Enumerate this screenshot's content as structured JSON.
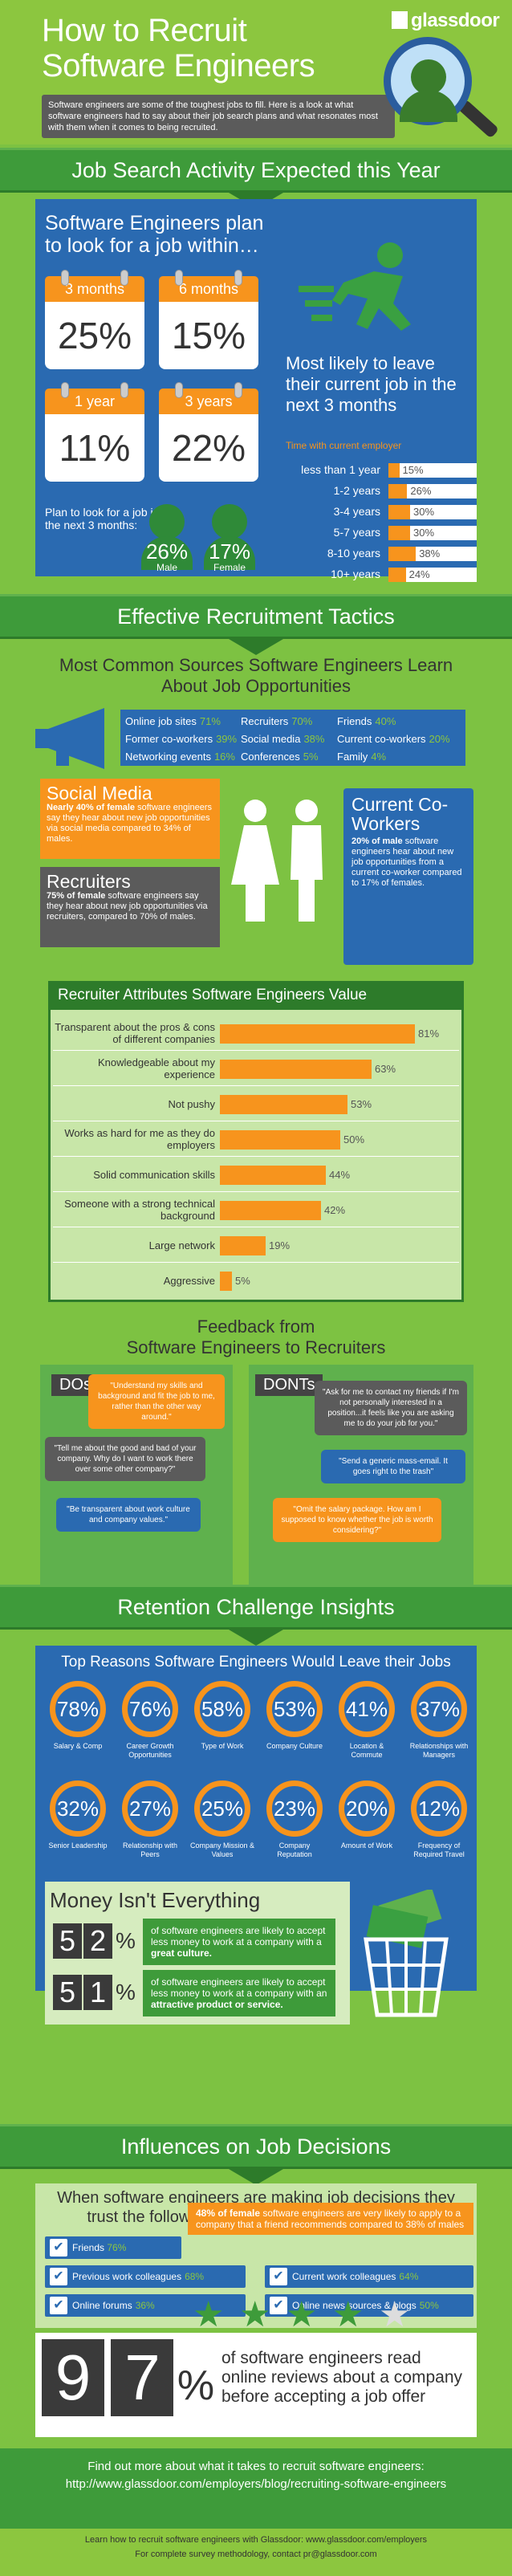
{
  "header": {
    "title_line1": "How to Recruit",
    "title_line2": "Software Engineers",
    "logo": "glassdoor",
    "intro": "Software engineers are some of the toughest jobs to fill. Here is a look at what software engineers had to say about their job search plans and what resonates most with them when it comes to being recruited."
  },
  "section1": {
    "bar": "Job Search Activity Expected this Year",
    "title": "Software Engineers plan to look for a job within…",
    "calendars": [
      {
        "period": "3 months",
        "value": "25%"
      },
      {
        "period": "6 months",
        "value": "15%"
      },
      {
        "period": "1 year",
        "value": "11%"
      },
      {
        "period": "3 years",
        "value": "22%"
      }
    ],
    "plan_text": "Plan to look for a job in the next 3 months:",
    "male_pct": "26%",
    "male_label": "Male",
    "female_pct": "17%",
    "female_label": "Female",
    "leave_title": "Most likely to leave their current job in the next 3 months",
    "leave_sub": "Time with current employer",
    "leave_rows": [
      {
        "label": "less than 1 year",
        "value": 15,
        "text": "15%"
      },
      {
        "label": "1-2 years",
        "value": 26,
        "text": "26%"
      },
      {
        "label": "3-4 years",
        "value": 30,
        "text": "30%"
      },
      {
        "label": "5-7 years",
        "value": 30,
        "text": "30%"
      },
      {
        "label": "8-10 years",
        "value": 38,
        "text": "38%"
      },
      {
        "label": "10+ years",
        "value": 24,
        "text": "24%"
      }
    ]
  },
  "section2": {
    "bar": "Effective Recruitment Tactics",
    "title": "Most Common Sources Software Engineers Learn About Job Opportunities",
    "sources": [
      {
        "label": "Online job sites",
        "value": "71%"
      },
      {
        "label": "Recruiters",
        "value": "70%"
      },
      {
        "label": "Friends",
        "value": "40%"
      },
      {
        "label": "Former co-workers",
        "value": "39%"
      },
      {
        "label": "Social media",
        "value": "38%"
      },
      {
        "label": "Current co-workers",
        "value": "20%"
      },
      {
        "label": "Networking events",
        "value": "16%"
      },
      {
        "label": "Conferences",
        "value": "5%"
      },
      {
        "label": "Family",
        "value": "4%"
      }
    ],
    "social_title": "Social Media",
    "social_bold": "Nearly 40% of female",
    "social_text": " software engineers say they hear about new job opportunities via social media compared to 34% of males.",
    "recruiters_title": "Recruiters",
    "recruiters_bold": "75% of female",
    "recruiters_text": " software engineers say they hear about new job opportunities via recruiters, compared to 70% of males.",
    "cowork_title": "Current Co-Workers",
    "cowork_bold": "20% of male",
    "cowork_text": " software engineers hear about new job opportunities from a current co-worker compared to 17% of females.",
    "attr_title": "Recruiter Attributes Software Engineers Value",
    "attributes": [
      {
        "label": "Transparent about the pros & cons of different companies",
        "value": 81,
        "text": "81%"
      },
      {
        "label": "Knowledgeable about my experience",
        "value": 63,
        "text": "63%"
      },
      {
        "label": "Not pushy",
        "value": 53,
        "text": "53%"
      },
      {
        "label": "Works as hard for me as they do employers",
        "value": 50,
        "text": "50%"
      },
      {
        "label": "Solid communication skills",
        "value": 44,
        "text": "44%"
      },
      {
        "label": "Someone with a strong technical background",
        "value": 42,
        "text": "42%"
      },
      {
        "label": "Large network",
        "value": 19,
        "text": "19%"
      },
      {
        "label": "Aggressive",
        "value": 5,
        "text": "5%"
      }
    ],
    "feedback_title1": "Feedback from",
    "feedback_title2": "Software Engineers to Recruiters",
    "dos_label": "DOs",
    "donts_label": "DONTs",
    "dos": [
      "\"Understand my skills and background and fit the job to me, rather than the other way around.\"",
      "\"Tell me about the good and bad of your company. Why do I want to work there over some other company?\"",
      "\"Be transparent about work culture and company values.\""
    ],
    "donts": [
      "\"Ask for me to contact my friends if I'm not personally interested in a position...it feels like you are asking me to do your job for you.\"",
      "\"Send a generic mass-email. It goes right to the trash\"",
      "\"Omit the salary package. How am I supposed to know whether the job is worth considering?\""
    ]
  },
  "section3": {
    "bar": "Retention Challenge Insights",
    "title": "Top Reasons Software Engineers Would Leave their Jobs",
    "reasons": [
      {
        "pct": "78%",
        "label": "Salary & Comp"
      },
      {
        "pct": "76%",
        "label": "Career Growth Opportunities"
      },
      {
        "pct": "58%",
        "label": "Type of Work"
      },
      {
        "pct": "53%",
        "label": "Company Culture"
      },
      {
        "pct": "41%",
        "label": "Location & Commute"
      },
      {
        "pct": "37%",
        "label": "Relationships with Managers"
      },
      {
        "pct": "32%",
        "label": "Senior Leadership"
      },
      {
        "pct": "27%",
        "label": "Relationship with Peers"
      },
      {
        "pct": "25%",
        "label": "Company Mission & Values"
      },
      {
        "pct": "23%",
        "label": "Company Reputation"
      },
      {
        "pct": "20%",
        "label": "Amount of Work"
      },
      {
        "pct": "12%",
        "label": "Frequency of Required Travel"
      }
    ],
    "money_title": "Money Isn't Everything",
    "money1_digits": [
      "5",
      "2"
    ],
    "money1_text": "of software engineers are likely to accept less money to work at a company with a ",
    "money1_bold": "great culture.",
    "money2_digits": [
      "5",
      "1"
    ],
    "money2_text": "of software engineers are likely to accept less money to work at a company with an ",
    "money2_bold": "attractive product or service.",
    "percent_sign": "%"
  },
  "section4": {
    "bar": "Influences on Job Decisions",
    "title": "When software engineers are making job decisions they trust the following sources for more information:",
    "friends": {
      "label": "Friends",
      "value": "76%"
    },
    "callout_bold": "48% of female",
    "callout_text": " software engineers are very likely to apply to a company that a friend recommends compared to 38% of males",
    "sources": [
      {
        "label": "Previous work colleagues",
        "value": "68%"
      },
      {
        "label": "Current work colleagues",
        "value": "64%"
      },
      {
        "label": "Online forums",
        "value": "36%"
      },
      {
        "label": "Online news sources & blogs",
        "value": "50%"
      }
    ],
    "final_digits": [
      "9",
      "7"
    ],
    "final_pct": "%",
    "final_text": "of software engineers read online reviews about a company before accepting a job offer",
    "stars_filled": 4,
    "stars_total": 5
  },
  "footer": {
    "line1": "Find out more about what it takes to recruit software engineers:",
    "line2": "http://www.glassdoor.com/employers/blog/recruiting-software-engineers",
    "line3": "Learn how to recruit software engineers with Glassdoor: www.glassdoor.com/employers",
    "line4": "For complete survey methodology, contact pr@glassdoor.com"
  }
}
